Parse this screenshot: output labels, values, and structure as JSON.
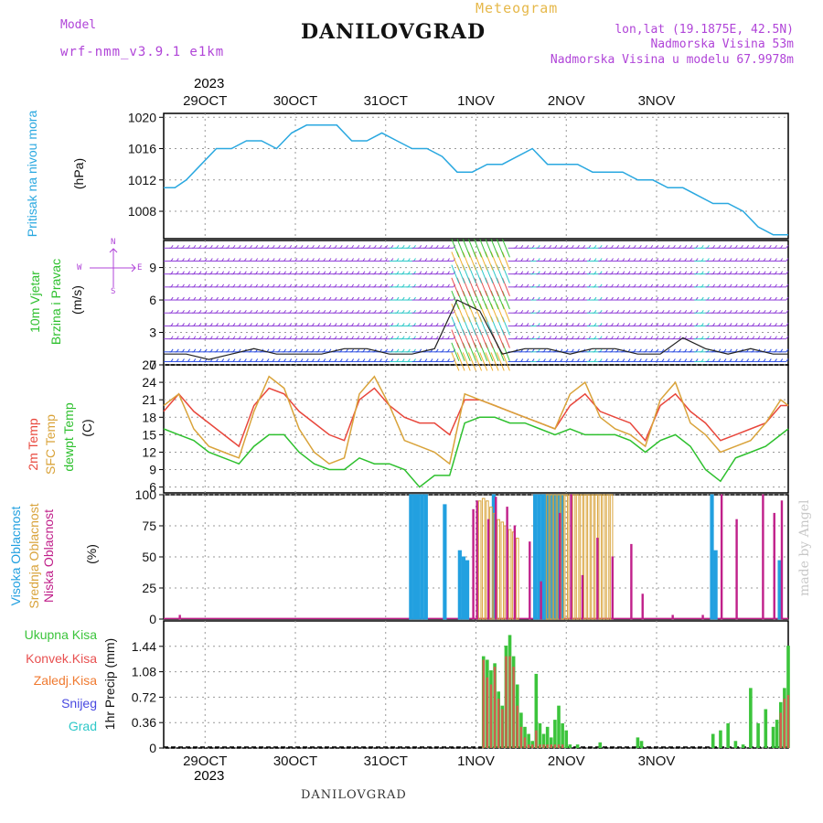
{
  "header": {
    "model_label": "Model",
    "model_name": "wrf-nmm_v3.9.1 e1km",
    "product": "Meteogram",
    "station": "DANILOVGRAD",
    "lonlat": "lon,lat (19.1875E, 42.5N)",
    "altitude": "Nadmorska Visina 53m",
    "model_altitude": "Nadmorska Visina u modelu 67.9978m",
    "year": "2023"
  },
  "footer": {
    "station": "DANILOVGRAD",
    "watermark": "made by Angel",
    "year": "2023"
  },
  "colors": {
    "pressure": "#2aa8e0",
    "t2m": "#e8473c",
    "sfc": "#d9a33a",
    "dew": "#2ec02e",
    "high_cloud": "#22a0e0",
    "mid_cloud": "#d9a33a",
    "low_cloud": "#c0208a",
    "total_precip": "#3cc43c",
    "conv_precip": "#e85050",
    "frozen": "#f07a30",
    "snow": "#4848e0",
    "hail": "#2ec8c8",
    "purple": "#b044d8"
  },
  "date_ticks": [
    "29OCT",
    "30OCT",
    "31OCT",
    "1NOV",
    "2NOV",
    "3NOV"
  ],
  "labels": {
    "pressure": "Pritisak na nivou mora",
    "pressure_unit": "(hPa)",
    "wind1": "10m Vjetar",
    "wind2": "Brzina i Pravac",
    "wind_unit": "(m/s)",
    "compass_n": "N",
    "compass_s": "S",
    "compass_w": "W",
    "compass_e": "E",
    "t2m": "2m Temp",
    "sfc": "SFC Temp",
    "dew": "dewpt Temp",
    "temp_unit": "(C)",
    "high_cloud": "Visoka Oblacnost",
    "mid_cloud": "Srednja Oblacnost",
    "low_cloud": "Niska Oblacnost",
    "cloud_unit": "(%)",
    "precip_total": "Ukupna Kisa",
    "precip_conv": "Konvek.Kisa",
    "precip_frozen": "Zaledj.Kisa",
    "precip_snow": "Snijeg",
    "precip_hail": "Grad",
    "precip_unit": "1hr Precip (mm)"
  },
  "chart_data": [
    {
      "type": "line",
      "title": "Pritisak na nivou mora",
      "ylabel": "(hPa)",
      "ylim": [
        1004.5,
        1020.5
      ],
      "yticks": [
        1008,
        1012,
        1016,
        1020
      ],
      "x_unit": "hours from 2023-10-28 13:00",
      "series": [
        {
          "name": "Pritisak na nivou mora",
          "x": [
            0,
            3,
            6,
            10,
            14,
            18,
            22,
            26,
            30,
            34,
            38,
            42,
            46,
            50,
            54,
            58,
            62,
            66,
            70,
            74,
            78,
            82,
            86,
            90,
            94,
            98,
            102,
            106,
            110,
            114,
            118,
            122,
            126,
            130,
            134,
            138,
            142,
            146,
            150,
            154,
            158,
            162,
            166
          ],
          "values": [
            1011,
            1011,
            1012,
            1014,
            1016,
            1016,
            1017,
            1017,
            1016,
            1018,
            1019,
            1019,
            1019,
            1017,
            1017,
            1018,
            1017,
            1016,
            1016,
            1015,
            1013,
            1013,
            1014,
            1014,
            1015,
            1016,
            1014,
            1014,
            1014,
            1013,
            1013,
            1013,
            1012,
            1012,
            1011,
            1011,
            1010,
            1009,
            1009,
            1008,
            1006,
            1005,
            1005
          ]
        }
      ]
    },
    {
      "type": "line",
      "title": "10m Vjetar Brzina i Pravac",
      "ylabel": "(m/s)",
      "ylim": [
        0,
        11.5
      ],
      "yticks": [
        0,
        3,
        6,
        9
      ],
      "x_unit": "hours from 2023-10-28 13:00",
      "series": [
        {
          "name": "10m wind speed",
          "x": [
            0,
            6,
            12,
            18,
            24,
            30,
            36,
            42,
            48,
            54,
            60,
            66,
            72,
            78,
            84,
            90,
            96,
            102,
            108,
            114,
            120,
            126,
            132,
            138,
            144,
            150,
            156,
            162,
            166
          ],
          "values": [
            1,
            1,
            0.5,
            1,
            1.5,
            1,
            1,
            1,
            1.5,
            1.5,
            1,
            1,
            1.5,
            6,
            5,
            1,
            1.5,
            1.5,
            1,
            1.5,
            1.5,
            1,
            1,
            2.5,
            1.5,
            1,
            1.5,
            1,
            1
          ]
        }
      ]
    },
    {
      "type": "line",
      "ylabel": "(C)",
      "ylim": [
        5,
        27
      ],
      "yticks": [
        6,
        9,
        12,
        15,
        18,
        21,
        24,
        27
      ],
      "x_unit": "hours from 2023-10-28 13:00",
      "x": [
        0,
        4,
        8,
        12,
        16,
        20,
        24,
        28,
        32,
        36,
        40,
        44,
        48,
        52,
        56,
        60,
        64,
        68,
        72,
        76,
        80,
        84,
        88,
        92,
        96,
        100,
        104,
        108,
        112,
        116,
        120,
        124,
        128,
        132,
        136,
        140,
        144,
        148,
        152,
        156,
        160,
        164,
        166
      ],
      "series": [
        {
          "name": "2m Temp",
          "values": [
            19,
            22,
            19,
            17,
            15,
            13,
            20,
            23,
            22,
            19,
            17,
            15,
            14,
            21,
            23,
            20,
            18,
            17,
            17,
            15,
            21,
            21,
            20,
            19,
            18,
            17,
            16,
            20,
            22,
            19,
            18,
            17,
            14,
            20,
            22,
            19,
            17,
            14,
            15,
            16,
            17,
            20,
            20
          ]
        },
        {
          "name": "SFC Temp",
          "values": [
            20,
            22,
            16,
            13,
            12,
            11,
            19,
            25,
            23,
            16,
            12,
            10,
            11,
            22,
            25,
            20,
            14,
            13,
            12,
            10,
            22,
            21,
            20,
            19,
            18,
            17,
            16,
            22,
            24,
            18,
            16,
            15,
            13,
            21,
            24,
            17,
            15,
            12,
            13,
            14,
            17,
            21,
            20
          ]
        },
        {
          "name": "dewpt Temp",
          "values": [
            16,
            15,
            14,
            12,
            11,
            10,
            13,
            15,
            15,
            12,
            10,
            9,
            9,
            11,
            10,
            10,
            9,
            6,
            8,
            8,
            17,
            18,
            18,
            17,
            17,
            16,
            15,
            16,
            15,
            15,
            15,
            14,
            12,
            14,
            15,
            13,
            9,
            7,
            11,
            12,
            13,
            15,
            16
          ]
        }
      ]
    },
    {
      "type": "bar",
      "ylabel": "(%)",
      "ylim": [
        0,
        100
      ],
      "yticks": [
        0,
        25,
        50,
        75,
        100
      ],
      "x_unit": "hours from 2023-10-28 13:00",
      "series": [
        {
          "name": "Visoka Oblacnost",
          "x": [
            66,
            67,
            68,
            69,
            70,
            75,
            79,
            80,
            81,
            88,
            99,
            100,
            101,
            102,
            103,
            104,
            105,
            106,
            146,
            147,
            164
          ],
          "values": [
            100,
            100,
            100,
            100,
            100,
            92,
            55,
            50,
            47,
            100,
            100,
            100,
            100,
            100,
            100,
            100,
            100,
            100,
            100,
            55,
            47
          ]
        },
        {
          "name": "Srednja Oblacnost",
          "x": [
            84,
            85,
            86,
            87,
            88,
            89,
            90,
            91,
            92,
            93,
            94,
            102,
            103,
            104,
            105,
            106,
            107,
            108,
            109,
            110,
            111,
            112,
            113,
            114,
            115,
            116,
            117,
            118,
            119
          ],
          "values": [
            95,
            97,
            95,
            90,
            85,
            80,
            78,
            75,
            72,
            70,
            65,
            100,
            100,
            100,
            100,
            100,
            100,
            100,
            100,
            100,
            100,
            100,
            100,
            100,
            100,
            100,
            100,
            100,
            100
          ]
        },
        {
          "name": "Niska Oblacnost",
          "x": [
            4,
            82,
            83,
            86,
            88,
            91,
            93,
            97,
            100,
            105,
            108,
            111,
            115,
            119,
            124,
            127,
            135,
            143,
            148,
            152,
            159,
            162,
            164
          ],
          "values": [
            3,
            88,
            95,
            80,
            98,
            90,
            75,
            62,
            30,
            85,
            100,
            35,
            65,
            50,
            60,
            20,
            3,
            3,
            100,
            80,
            100,
            85,
            95
          ]
        }
      ]
    },
    {
      "type": "bar",
      "ylabel": "1hr Precip (mm)",
      "ylim": [
        0,
        1.8
      ],
      "yticks": [
        0,
        0.36,
        0.72,
        1.08,
        1.44
      ],
      "x_unit": "hours from 2023-10-28 13:00",
      "series": [
        {
          "name": "Ukupna Kisa",
          "x": [
            85,
            86,
            87,
            88,
            89,
            90,
            91,
            92,
            93,
            94,
            95,
            96,
            97,
            98,
            99,
            100,
            101,
            102,
            103,
            104,
            105,
            106,
            107,
            108,
            110,
            116,
            126,
            127,
            146,
            148,
            150,
            152,
            154,
            156,
            158,
            160,
            162,
            163,
            164,
            165,
            166
          ],
          "values": [
            1.3,
            1.25,
            1.1,
            1.2,
            0.8,
            0.6,
            1.45,
            1.6,
            1.3,
            0.9,
            0.5,
            0.3,
            0.2,
            0.1,
            1.05,
            0.35,
            0.2,
            0.3,
            0.15,
            0.4,
            0.6,
            0.35,
            0.25,
            0.05,
            0.05,
            0.08,
            0.15,
            0.1,
            0.2,
            0.25,
            0.35,
            0.1,
            0.05,
            0.85,
            0.35,
            0.55,
            0.3,
            0.4,
            0.65,
            0.85,
            1.45
          ]
        },
        {
          "name": "Konvek.Kisa",
          "x": [
            85,
            86,
            87,
            88,
            89,
            90,
            91,
            92,
            93,
            94,
            95,
            96,
            97,
            98,
            99,
            100,
            101,
            102,
            103,
            104,
            105,
            106,
            164,
            165,
            166
          ],
          "values": [
            1.25,
            1.0,
            0.9,
            1.15,
            0.7,
            0.55,
            1.3,
            1.3,
            1.15,
            0.6,
            0.3,
            0.15,
            0.05,
            0.05,
            0.25,
            0.05,
            0.05,
            0.05,
            0.05,
            0.05,
            0.05,
            0.05,
            0.5,
            0.7,
            0.75
          ]
        },
        {
          "name": "Zaledj.Kisa",
          "x": [],
          "values": []
        },
        {
          "name": "Snijeg",
          "x": [],
          "values": []
        },
        {
          "name": "Grad",
          "x": [],
          "values": []
        }
      ]
    }
  ]
}
